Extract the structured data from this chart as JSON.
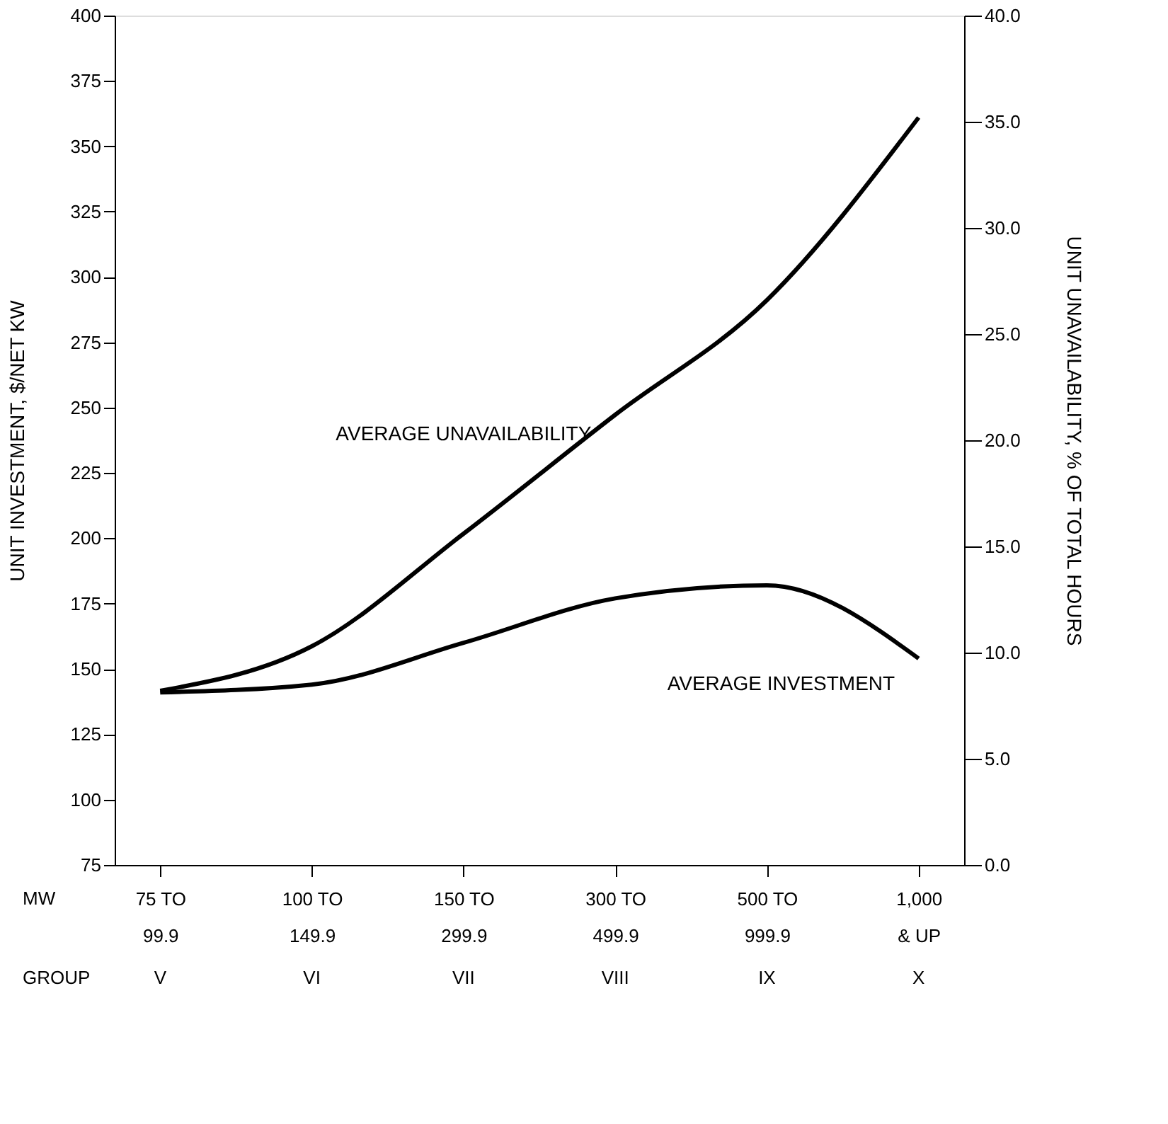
{
  "chart_data": {
    "type": "line",
    "categories": [
      "75 TO\n99.9",
      "100 TO\n149.9",
      "150 TO\n299.9",
      "300 TO\n499.9",
      "500 TO\n999.9",
      "1,000\n& UP"
    ],
    "ylabel": "UNIT INVESTMENT, $/NET KW",
    "y2label": "UNIT UNAVAILABILITY, % OF TOTAL HOURS",
    "ylim": [
      75,
      400
    ],
    "yticks": [
      75,
      100,
      125,
      150,
      175,
      200,
      225,
      250,
      275,
      300,
      325,
      350,
      375,
      400
    ],
    "y2lim": [
      0,
      40
    ],
    "y2ticks": [
      {
        "value": 0,
        "label": "0.0"
      },
      {
        "value": 5,
        "label": "5.0"
      },
      {
        "value": 10,
        "label": "10.0"
      },
      {
        "value": 15,
        "label": "15.0"
      },
      {
        "value": 20,
        "label": "20.0"
      },
      {
        "value": 25,
        "label": "25.0"
      },
      {
        "value": 30,
        "label": "30.0"
      },
      {
        "value": 35,
        "label": "35.0"
      },
      {
        "value": 40,
        "label": "40.0"
      }
    ],
    "series": [
      {
        "name": "AVERAGE INVESTMENT",
        "color": "#000000",
        "values": [
          141,
          144,
          160,
          177,
          182,
          154
        ]
      },
      {
        "name": "AVERAGE UNAVAILABILITY",
        "color": "#000000",
        "axis": "y2",
        "values": [
          8.2,
          10.3,
          15.6,
          21.2,
          26.6,
          35.2
        ]
      }
    ],
    "annotations": [
      "MW",
      "GROUP",
      "V",
      "VI",
      "VII",
      "VIII",
      "IX",
      "X"
    ],
    "marker": "none",
    "line_style": "solid"
  }
}
